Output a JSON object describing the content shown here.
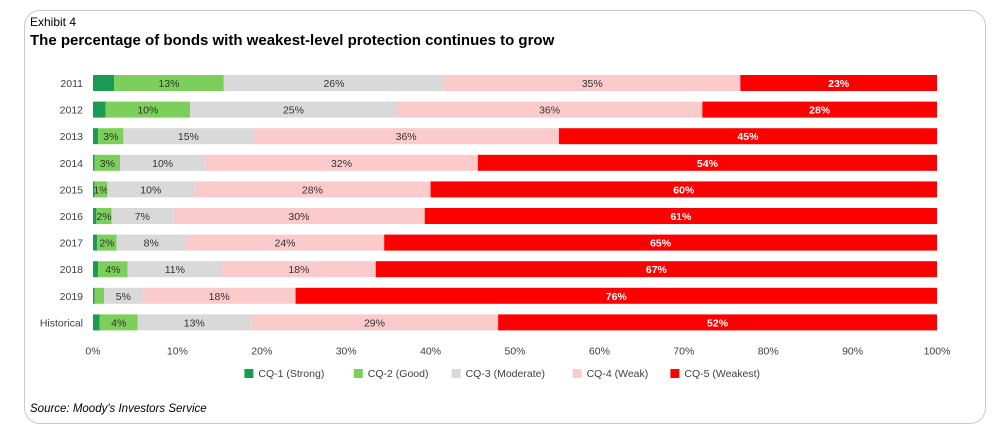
{
  "header": {
    "exhibit": "Exhibit 4",
    "title": "The percentage of bonds with weakest-level protection continues to grow"
  },
  "footer": {
    "source": "Source: Moody's Investors Service"
  },
  "chart_data": {
    "type": "bar",
    "orientation": "horizontal",
    "stacked": true,
    "title": "The percentage of bonds with weakest-level protection continues to grow",
    "xlabel": "",
    "ylabel": "",
    "xlim": [
      0,
      100
    ],
    "xticks": [
      "0%",
      "10%",
      "20%",
      "30%",
      "40%",
      "50%",
      "60%",
      "70%",
      "80%",
      "90%",
      "100%"
    ],
    "categories": [
      "2011",
      "2012",
      "2013",
      "2014",
      "2015",
      "2016",
      "2017",
      "2018",
      "2019",
      "Historical"
    ],
    "legend_position": "bottom",
    "grid": false,
    "series": [
      {
        "name": "CQ-1 (Strong)",
        "color": "#1a9a52",
        "values": [
          2.5,
          1.5,
          0.6,
          0.2,
          0.2,
          0.4,
          0.5,
          0.6,
          0.2,
          0.8
        ],
        "labels": [
          "",
          "",
          "",
          "",
          "",
          "",
          "",
          "",
          "",
          ""
        ]
      },
      {
        "name": "CQ-2 (Good)",
        "color": "#7ccf5a",
        "values": [
          13,
          10,
          3,
          3,
          1.5,
          1.8,
          2.3,
          3.5,
          1.1,
          4.5
        ],
        "labels": [
          "13%",
          "10%",
          "3%",
          "3%",
          "1%",
          "2%",
          "2%",
          "4%",
          "",
          "4%"
        ]
      },
      {
        "name": "CQ-3 (Moderate)",
        "color": "#d9d9d9",
        "values": [
          26.1,
          24.5,
          15.4,
          10.1,
          10.3,
          7.3,
          8.2,
          11.2,
          4.6,
          13.4
        ],
        "labels": [
          "26%",
          "25%",
          "15%",
          "10%",
          "10%",
          "7%",
          "8%",
          "11%",
          "5%",
          "13%"
        ]
      },
      {
        "name": "CQ-4 (Weak)",
        "color": "#fbcaca",
        "values": [
          35.1,
          36.2,
          36.2,
          32.3,
          28,
          29.8,
          23.5,
          18.2,
          18.1,
          29.3
        ],
        "labels": [
          "35%",
          "36%",
          "36%",
          "32%",
          "28%",
          "30%",
          "24%",
          "18%",
          "18%",
          "29%"
        ]
      },
      {
        "name": "CQ-5 (Weakest)",
        "color": "#ff0000",
        "values": [
          23.3,
          27.8,
          44.8,
          54.4,
          60,
          60.7,
          65.5,
          66.5,
          76,
          52
        ],
        "labels": [
          "23%",
          "28%",
          "45%",
          "54%",
          "60%",
          "61%",
          "65%",
          "67%",
          "76%",
          "52%"
        ]
      }
    ]
  }
}
